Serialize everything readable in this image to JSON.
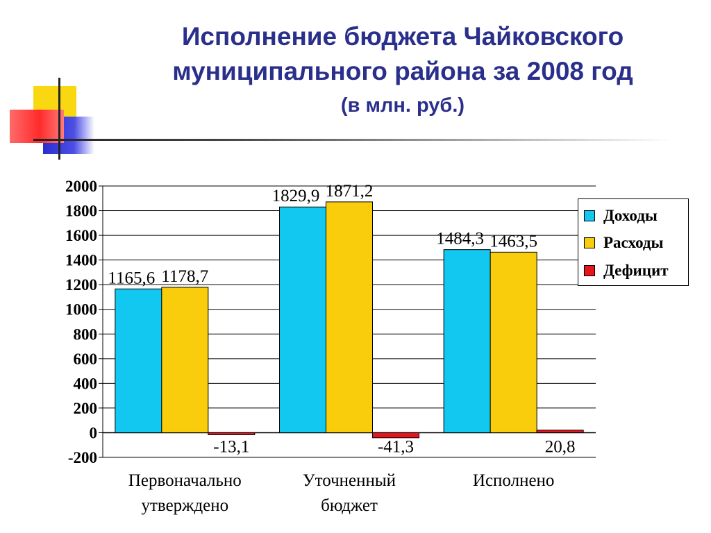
{
  "slide": {
    "title_line1": "Исполнение бюджета Чайковского",
    "title_line2": "муниципального района за 2008 год",
    "title_line3": "(в млн. руб.)"
  },
  "chart_data": {
    "type": "bar",
    "categories": [
      [
        "Первоначально",
        "утверждено"
      ],
      [
        "Уточненный",
        "бюджет"
      ],
      [
        "Исполнено"
      ]
    ],
    "series": [
      {
        "name": "Доходы",
        "color": "#12c8f0",
        "values": [
          1165.6,
          1829.9,
          1484.3
        ],
        "labels": [
          "1165,6",
          "1829,9",
          "1484,3"
        ]
      },
      {
        "name": "Расходы",
        "color": "#f9cd0c",
        "values": [
          1178.7,
          1871.2,
          1463.5
        ],
        "labels": [
          "1178,7",
          "1871,2",
          "1463,5"
        ]
      },
      {
        "name": "Дефицит",
        "color": "#e8141c",
        "values": [
          -13.1,
          -41.3,
          20.8
        ],
        "labels": [
          "-13,1",
          "-41,3",
          "20,8"
        ]
      }
    ],
    "ylim": [
      -200,
      2000
    ],
    "yticks": [
      2000,
      1800,
      1600,
      1400,
      1200,
      1000,
      800,
      600,
      400,
      200,
      0,
      -200
    ],
    "grid": true,
    "legend_position": "right"
  }
}
